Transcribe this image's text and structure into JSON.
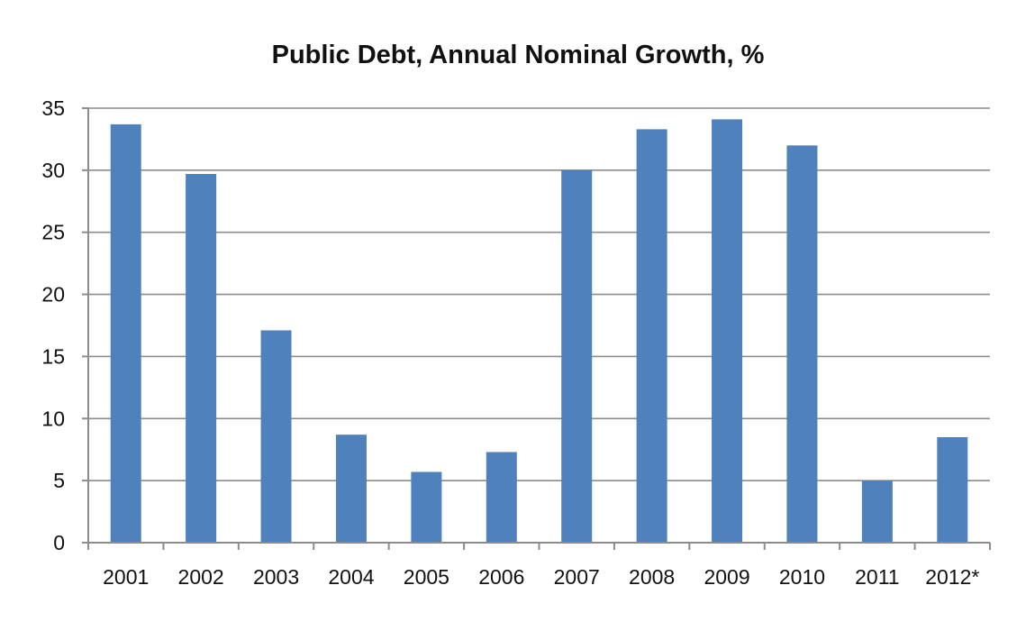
{
  "chart_data": {
    "type": "bar",
    "title": "Public Debt, Annual Nominal Growth, %",
    "xlabel": "",
    "ylabel": "",
    "categories": [
      "2001",
      "2002",
      "2003",
      "2004",
      "2005",
      "2006",
      "2007",
      "2008",
      "2009",
      "2010",
      "2011",
      "2012*"
    ],
    "values": [
      33.7,
      29.7,
      17.1,
      8.7,
      5.7,
      7.3,
      30.0,
      33.3,
      34.1,
      32.0,
      5.0,
      8.5
    ],
    "ylim": [
      0,
      35
    ],
    "yticks": [
      "0",
      "5",
      "10",
      "15",
      "20",
      "25",
      "30",
      "35"
    ],
    "grid": true,
    "legend": "none",
    "bar_color": "#4f81bd"
  }
}
